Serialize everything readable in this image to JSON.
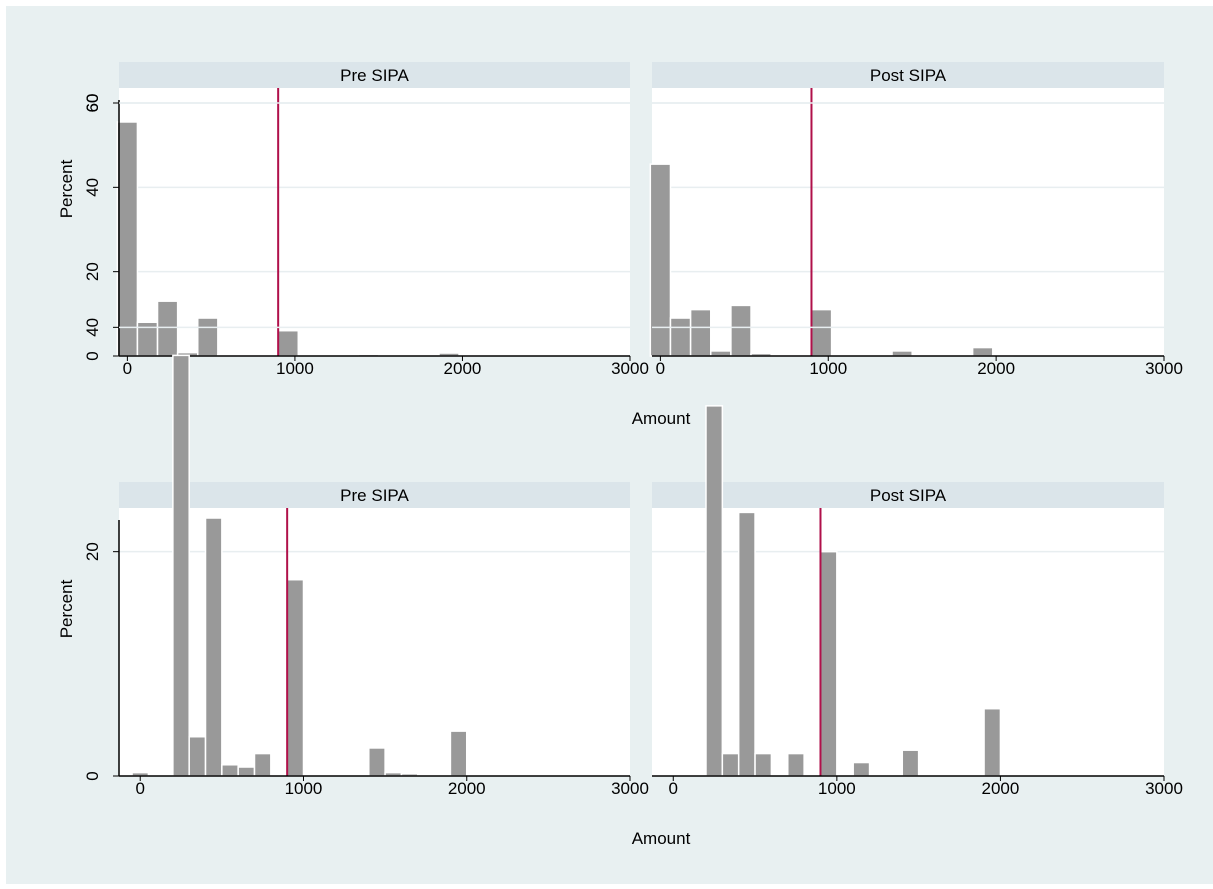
{
  "figure": {
    "background": "#e8f0f1",
    "panel_background": "#ffffff",
    "strip_background": "#dbe5ea",
    "gridline_color": "#e8eef0",
    "bar_color": "#999999",
    "bar_edge_color": "#ffffff",
    "ref_line_color": "#b0104a"
  },
  "chart_data": [
    {
      "type": "bar",
      "title": "",
      "xlabel": "Amount",
      "ylabel": "Percent",
      "ylim": [
        0,
        60
      ],
      "yticks": [
        "0",
        "20",
        "40",
        "60"
      ],
      "xticks": [
        "0",
        "1000",
        "2000",
        "3000"
      ],
      "grid": true,
      "panels": [
        {
          "name": "Pre SIPA",
          "xlim": [
            -50,
            3000
          ],
          "bin_width": 120,
          "ref_line_x": 900,
          "bars": [
            {
              "x": 0,
              "y": 55.5
            },
            {
              "x": 120,
              "y": 8
            },
            {
              "x": 240,
              "y": 13
            },
            {
              "x": 360,
              "y": 0.8
            },
            {
              "x": 480,
              "y": 9
            },
            {
              "x": 600,
              "y": 0.3
            },
            {
              "x": 720,
              "y": 0.2
            },
            {
              "x": 840,
              "y": 0.2
            },
            {
              "x": 960,
              "y": 6
            },
            {
              "x": 1440,
              "y": 0.4
            },
            {
              "x": 1920,
              "y": 0.7
            },
            {
              "x": 2040,
              "y": 0.2
            }
          ]
        },
        {
          "name": "Post SIPA",
          "xlim": [
            -50,
            3000
          ],
          "bin_width": 120,
          "ref_line_x": 900,
          "bars": [
            {
              "x": 0,
              "y": 45.5
            },
            {
              "x": 120,
              "y": 9
            },
            {
              "x": 240,
              "y": 11
            },
            {
              "x": 360,
              "y": 1.2
            },
            {
              "x": 480,
              "y": 12
            },
            {
              "x": 600,
              "y": 0.6
            },
            {
              "x": 720,
              "y": 0.2
            },
            {
              "x": 840,
              "y": 0.3
            },
            {
              "x": 960,
              "y": 11
            },
            {
              "x": 1440,
              "y": 1.2
            },
            {
              "x": 1920,
              "y": 2
            },
            {
              "x": 2040,
              "y": 0.2
            }
          ]
        }
      ]
    },
    {
      "type": "bar",
      "title": "",
      "xlabel": "Amount",
      "ylabel": "Percent",
      "ylim": [
        0,
        60
      ],
      "yticks": [
        "0",
        "20",
        "40",
        "60"
      ],
      "xticks": [
        "0",
        "1000",
        "2000",
        "3000"
      ],
      "grid": true,
      "panels": [
        {
          "name": "Pre SIPA",
          "xlim": [
            -130,
            3000
          ],
          "bin_width": 100,
          "ref_line_x": 900,
          "bars": [
            {
              "x": 0,
              "y": 0.3
            },
            {
              "x": 250,
              "y": 37.5
            },
            {
              "x": 350,
              "y": 3.5
            },
            {
              "x": 450,
              "y": 23
            },
            {
              "x": 550,
              "y": 1
            },
            {
              "x": 650,
              "y": 0.8
            },
            {
              "x": 750,
              "y": 2
            },
            {
              "x": 950,
              "y": 17.5
            },
            {
              "x": 1450,
              "y": 2.5
            },
            {
              "x": 1550,
              "y": 0.3
            },
            {
              "x": 1650,
              "y": 0.2
            },
            {
              "x": 1950,
              "y": 4
            }
          ]
        },
        {
          "name": "Post SIPA",
          "xlim": [
            -130,
            3000
          ],
          "bin_width": 100,
          "ref_line_x": 900,
          "bars": [
            {
              "x": 250,
              "y": 33
            },
            {
              "x": 350,
              "y": 2
            },
            {
              "x": 450,
              "y": 23.5
            },
            {
              "x": 550,
              "y": 2
            },
            {
              "x": 750,
              "y": 2
            },
            {
              "x": 950,
              "y": 20
            },
            {
              "x": 1150,
              "y": 1.2
            },
            {
              "x": 1450,
              "y": 2.3
            },
            {
              "x": 1950,
              "y": 6
            }
          ]
        }
      ]
    }
  ]
}
